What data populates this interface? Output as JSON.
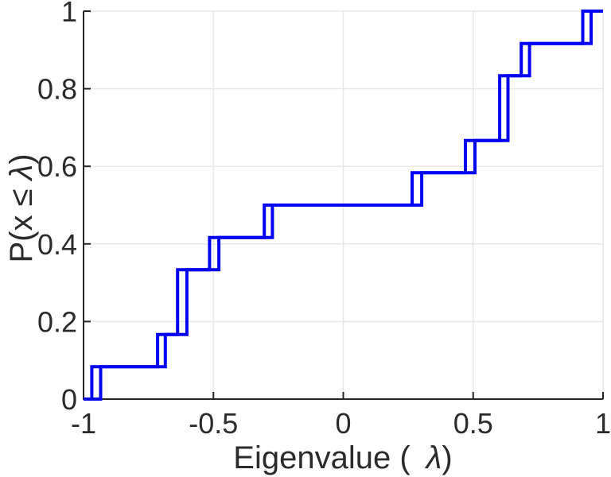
{
  "chart_data": {
    "type": "line",
    "subtype": "empirical-cdf-stairs",
    "title": "",
    "xlabel": {
      "prefix": "Eigenvalue (",
      "symbol": "λ",
      "suffix": ")"
    },
    "ylabel": {
      "prefix": "P(x ≤",
      "symbol": "λ",
      "suffix": ")"
    },
    "xlim": [
      -1,
      1
    ],
    "ylim": [
      0,
      1
    ],
    "grid": true,
    "legend": "none",
    "x_ticks": {
      "values": [
        -1,
        -0.5,
        0,
        0.5,
        1
      ],
      "labels": [
        "-1",
        "-0.5",
        "0",
        "0.5",
        "1"
      ]
    },
    "y_ticks": {
      "values": [
        0,
        0.2,
        0.4,
        0.6,
        0.8,
        1
      ],
      "labels": [
        "0",
        "0.2",
        "0.4",
        "0.6",
        "0.8",
        "1"
      ]
    },
    "series": [
      {
        "name": "ecdf-curve-1",
        "n_points": 12,
        "eigenvalues": [
          -0.968,
          -0.715,
          -0.638,
          -0.638,
          -0.515,
          -0.304,
          0.265,
          0.47,
          0.602,
          0.602,
          0.685,
          0.922
        ]
      },
      {
        "name": "ecdf-curve-2",
        "n_points": 12,
        "eigenvalues": [
          -0.934,
          -0.685,
          -0.602,
          -0.602,
          -0.479,
          -0.273,
          0.302,
          0.507,
          0.634,
          0.634,
          0.717,
          0.954
        ]
      }
    ],
    "plateau_levels": [
      0.083,
      0.167,
      0.333,
      0.417,
      0.5,
      0.583,
      0.667,
      0.833,
      0.917,
      1.0
    ],
    "colors": {
      "line": "#0202f2",
      "axis": "#262626",
      "grid": "#e7e7e7",
      "tick_label": "#2b2b2b",
      "background": "#ffffff"
    }
  }
}
